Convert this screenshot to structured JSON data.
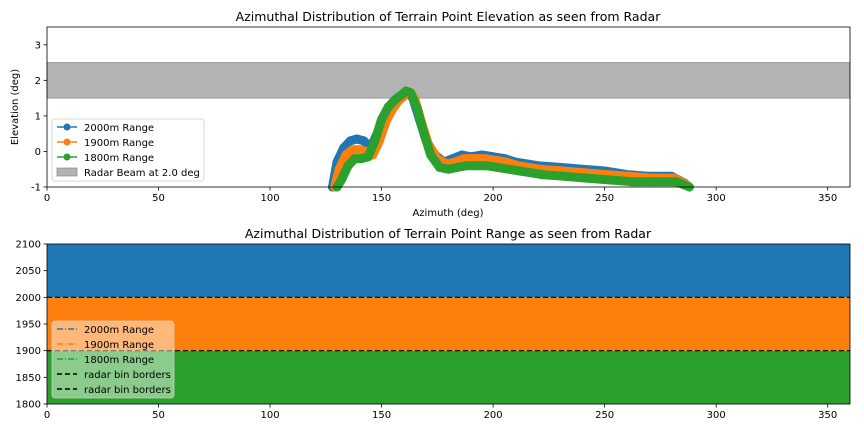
{
  "colors": {
    "c2000": "#1f77b4",
    "c1900": "#ff7f0e",
    "c1800": "#2ca02c",
    "beam": "#b3b3b3",
    "bin_border": "#000000"
  },
  "chart_data": [
    {
      "type": "line",
      "title": "Azimuthal Distribution of Terrain Point Elevation as seen from Radar",
      "xlabel": "Azimuth (deg)",
      "ylabel": "Elevation (deg)",
      "xlim": [
        0,
        360
      ],
      "ylim": [
        -1,
        3.5
      ],
      "xticks": [
        0,
        50,
        100,
        150,
        200,
        250,
        300,
        350
      ],
      "yticks": [
        -1,
        0,
        1,
        2,
        3
      ],
      "legend_position": "lower-left",
      "legend": [
        "2000m Range",
        "1900m Range",
        "1800m Range",
        "Radar Beam at 2.0 deg"
      ],
      "beam": {
        "label": "Radar Beam at 2.0 deg",
        "ymin": 1.5,
        "ymax": 2.5
      },
      "series": [
        {
          "name": "2000m Range",
          "marker": "circle",
          "x": [
            128,
            130,
            133,
            136,
            139,
            142,
            145,
            148,
            151,
            154,
            157,
            160,
            162,
            164,
            167,
            170,
            174,
            178,
            182,
            186,
            190,
            195,
            200,
            205,
            210,
            220,
            230,
            240,
            250,
            260,
            270,
            280,
            286
          ],
          "y": [
            -1.0,
            -0.3,
            0.1,
            0.3,
            0.35,
            0.3,
            0.1,
            0.5,
            1.0,
            1.3,
            1.5,
            1.6,
            1.65,
            1.5,
            0.9,
            0.3,
            -0.1,
            -0.3,
            -0.2,
            -0.1,
            -0.15,
            -0.1,
            -0.15,
            -0.2,
            -0.3,
            -0.4,
            -0.45,
            -0.5,
            -0.55,
            -0.65,
            -0.7,
            -0.7,
            -0.9
          ]
        },
        {
          "name": "1900m Range",
          "marker": "circle",
          "x": [
            129,
            131,
            134,
            137,
            140,
            143,
            146,
            149,
            152,
            155,
            158,
            161,
            163,
            165,
            168,
            171,
            175,
            179,
            183,
            187,
            191,
            196,
            201,
            206,
            211,
            221,
            231,
            241,
            251,
            261,
            271,
            281,
            287
          ],
          "y": [
            -1.0,
            -0.5,
            -0.1,
            0.05,
            0.05,
            0.0,
            -0.1,
            0.3,
            0.85,
            1.2,
            1.45,
            1.6,
            1.65,
            1.45,
            0.8,
            0.2,
            -0.2,
            -0.35,
            -0.3,
            -0.2,
            -0.2,
            -0.2,
            -0.25,
            -0.3,
            -0.4,
            -0.5,
            -0.55,
            -0.6,
            -0.65,
            -0.7,
            -0.75,
            -0.75,
            -0.95
          ]
        },
        {
          "name": "1800m Range",
          "marker": "circle",
          "x": [
            130,
            132,
            135,
            138,
            141,
            144,
            147,
            150,
            153,
            156,
            159,
            161,
            163,
            166,
            169,
            172,
            176,
            180,
            184,
            188,
            192,
            197,
            202,
            207,
            212,
            222,
            232,
            242,
            252,
            262,
            272,
            282,
            288
          ],
          "y": [
            -1.0,
            -0.8,
            -0.4,
            -0.2,
            -0.2,
            -0.15,
            0.3,
            0.9,
            1.25,
            1.45,
            1.6,
            1.7,
            1.65,
            1.2,
            0.5,
            -0.1,
            -0.45,
            -0.5,
            -0.45,
            -0.4,
            -0.4,
            -0.4,
            -0.45,
            -0.5,
            -0.55,
            -0.65,
            -0.7,
            -0.75,
            -0.8,
            -0.85,
            -0.85,
            -0.85,
            -1.0
          ]
        }
      ]
    },
    {
      "type": "line",
      "title": "Azimuthal Distribution of Terrain Point Range as seen from Radar",
      "xlabel": "",
      "ylabel": "",
      "xlim": [
        0,
        360
      ],
      "ylim": [
        1800,
        2100
      ],
      "xticks": [
        0,
        50,
        100,
        150,
        200,
        250,
        300,
        350
      ],
      "yticks": [
        1800,
        1850,
        1900,
        1950,
        2000,
        2050,
        2100
      ],
      "legend_position": "lower-left",
      "legend": [
        "2000m Range",
        "1900m Range",
        "1800m Range",
        "radar bin borders",
        "radar bin borders"
      ],
      "bands": [
        {
          "name": "2000m Range",
          "ymin": 2000,
          "ymax": 2100
        },
        {
          "name": "1900m Range",
          "ymin": 1900,
          "ymax": 2000
        },
        {
          "name": "1800m Range",
          "ymin": 1800,
          "ymax": 1900
        }
      ],
      "bin_borders": [
        1900,
        2000
      ]
    }
  ]
}
